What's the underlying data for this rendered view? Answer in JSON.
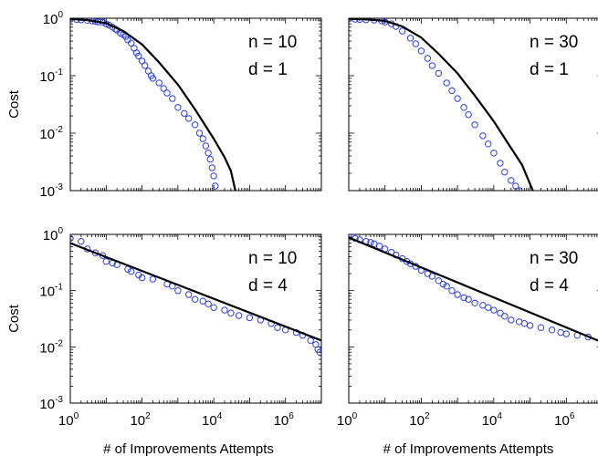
{
  "chart_data": [
    {
      "type": "scatter",
      "position": "top-left",
      "ylabel": "Cost",
      "xlabel": "",
      "x_scale": "log",
      "y_scale": "log",
      "xlim": [
        1,
        10000000.0
      ],
      "ylim": [
        0.001,
        1
      ],
      "annotation": {
        "n": "10",
        "d": "1"
      },
      "series": [
        {
          "kind": "points",
          "points": [
            [
              1,
              0.96
            ],
            [
              1.5,
              0.95
            ],
            [
              2,
              0.94
            ],
            [
              3,
              0.92
            ],
            [
              4,
              0.9
            ],
            [
              5,
              0.88
            ],
            [
              6,
              0.86
            ],
            [
              8,
              0.85
            ],
            [
              10,
              0.8
            ],
            [
              12,
              0.76
            ],
            [
              15,
              0.7
            ],
            [
              18,
              0.65
            ],
            [
              20,
              0.62
            ],
            [
              25,
              0.55
            ],
            [
              30,
              0.52
            ],
            [
              35,
              0.48
            ],
            [
              40,
              0.42
            ],
            [
              50,
              0.37
            ],
            [
              60,
              0.3
            ],
            [
              70,
              0.25
            ],
            [
              80,
              0.22
            ],
            [
              100,
              0.18
            ],
            [
              120,
              0.15
            ],
            [
              150,
              0.12
            ],
            [
              180,
              0.1
            ],
            [
              200,
              0.09
            ],
            [
              300,
              0.075
            ],
            [
              400,
              0.06
            ],
            [
              500,
              0.05
            ],
            [
              700,
              0.04
            ],
            [
              1000,
              0.028
            ],
            [
              1500,
              0.022
            ],
            [
              2000,
              0.018
            ],
            [
              3000,
              0.014
            ],
            [
              4000,
              0.01
            ],
            [
              5000,
              0.008
            ],
            [
              6000,
              0.006
            ],
            [
              7000,
              0.0045
            ],
            [
              8000,
              0.0035
            ],
            [
              9000,
              0.0025
            ],
            [
              10000,
              0.0018
            ],
            [
              11000,
              0.0012
            ]
          ]
        },
        {
          "kind": "line",
          "points": [
            [
              1,
              0.97
            ],
            [
              3,
              0.93
            ],
            [
              10,
              0.82
            ],
            [
              30,
              0.6
            ],
            [
              100,
              0.35
            ],
            [
              300,
              0.17
            ],
            [
              1000,
              0.07
            ],
            [
              3000,
              0.026
            ],
            [
              10000,
              0.008
            ],
            [
              20000,
              0.0038
            ],
            [
              30000,
              0.0022
            ],
            [
              40000,
              0.001
            ]
          ]
        }
      ]
    },
    {
      "type": "scatter",
      "position": "top-right",
      "ylabel": "",
      "xlabel": "",
      "x_scale": "log",
      "y_scale": "log",
      "xlim": [
        1,
        10000000.0
      ],
      "ylim": [
        0.001,
        1
      ],
      "annotation": {
        "n": "30",
        "d": "1"
      },
      "series": [
        {
          "kind": "points",
          "points": [
            [
              1,
              0.97
            ],
            [
              1.5,
              0.96
            ],
            [
              2,
              0.95
            ],
            [
              3,
              0.94
            ],
            [
              5,
              0.93
            ],
            [
              8,
              0.9
            ],
            [
              10,
              0.86
            ],
            [
              15,
              0.8
            ],
            [
              20,
              0.72
            ],
            [
              30,
              0.6
            ],
            [
              50,
              0.45
            ],
            [
              70,
              0.36
            ],
            [
              100,
              0.27
            ],
            [
              150,
              0.2
            ],
            [
              200,
              0.15
            ],
            [
              300,
              0.11
            ],
            [
              500,
              0.075
            ],
            [
              700,
              0.055
            ],
            [
              1000,
              0.04
            ],
            [
              1500,
              0.028
            ],
            [
              2000,
              0.021
            ],
            [
              3000,
              0.014
            ],
            [
              5000,
              0.009
            ],
            [
              7000,
              0.0065
            ],
            [
              10000,
              0.0045
            ],
            [
              15000,
              0.003
            ],
            [
              20000,
              0.0021
            ],
            [
              30000,
              0.0015
            ],
            [
              40000,
              0.0012
            ],
            [
              50000,
              0.001
            ]
          ]
        },
        {
          "kind": "line",
          "points": [
            [
              1,
              0.98
            ],
            [
              3,
              0.96
            ],
            [
              10,
              0.9
            ],
            [
              30,
              0.72
            ],
            [
              100,
              0.46
            ],
            [
              300,
              0.24
            ],
            [
              1000,
              0.11
            ],
            [
              3000,
              0.045
            ],
            [
              10000,
              0.016
            ],
            [
              30000,
              0.0055
            ],
            [
              60000,
              0.0028
            ],
            [
              100000,
              0.0013
            ],
            [
              120000,
              0.001
            ]
          ]
        }
      ]
    },
    {
      "type": "scatter",
      "position": "bottom-left",
      "ylabel": "Cost",
      "xlabel": "# of Improvements Attempts",
      "x_scale": "log",
      "y_scale": "log",
      "xlim": [
        1,
        10000000.0
      ],
      "ylim": [
        0.001,
        1
      ],
      "annotation": {
        "n": "10",
        "d": "4"
      },
      "series": [
        {
          "kind": "points",
          "points": [
            [
              1,
              0.85
            ],
            [
              2,
              0.75
            ],
            [
              3,
              0.55
            ],
            [
              5,
              0.47
            ],
            [
              8,
              0.42
            ],
            [
              10,
              0.33
            ],
            [
              15,
              0.31
            ],
            [
              20,
              0.29
            ],
            [
              40,
              0.24
            ],
            [
              50,
              0.22
            ],
            [
              80,
              0.19
            ],
            [
              100,
              0.17
            ],
            [
              200,
              0.16
            ],
            [
              500,
              0.13
            ],
            [
              700,
              0.12
            ],
            [
              1000,
              0.1
            ],
            [
              2000,
              0.085
            ],
            [
              3000,
              0.07
            ],
            [
              5000,
              0.065
            ],
            [
              7000,
              0.058
            ],
            [
              10000,
              0.05
            ],
            [
              20000,
              0.045
            ],
            [
              30000,
              0.04
            ],
            [
              50000,
              0.036
            ],
            [
              100000,
              0.033
            ],
            [
              200000,
              0.03
            ],
            [
              400000,
              0.026
            ],
            [
              600000,
              0.022
            ],
            [
              1000000,
              0.02
            ],
            [
              2000000,
              0.018
            ],
            [
              3000000,
              0.016
            ],
            [
              5000000,
              0.013
            ],
            [
              7000000,
              0.011
            ],
            [
              8000000,
              0.009
            ],
            [
              9000000,
              0.008
            ]
          ]
        },
        {
          "kind": "line",
          "points": [
            [
              1,
              0.7
            ],
            [
              10000000,
              0.013
            ]
          ]
        }
      ]
    },
    {
      "type": "scatter",
      "position": "bottom-right",
      "ylabel": "",
      "xlabel": "# of Improvements Attempts",
      "x_scale": "log",
      "y_scale": "log",
      "xlim": [
        1,
        10000000.0
      ],
      "ylim": [
        0.001,
        1
      ],
      "annotation": {
        "n": "30",
        "d": "4"
      },
      "series": [
        {
          "kind": "points",
          "points": [
            [
              1,
              0.9
            ],
            [
              1.5,
              0.85
            ],
            [
              2,
              0.8
            ],
            [
              3,
              0.75
            ],
            [
              4,
              0.72
            ],
            [
              5,
              0.68
            ],
            [
              7,
              0.62
            ],
            [
              10,
              0.55
            ],
            [
              15,
              0.48
            ],
            [
              20,
              0.43
            ],
            [
              30,
              0.37
            ],
            [
              40,
              0.33
            ],
            [
              50,
              0.3
            ],
            [
              70,
              0.27
            ],
            [
              100,
              0.23
            ],
            [
              150,
              0.2
            ],
            [
              200,
              0.18
            ],
            [
              300,
              0.15
            ],
            [
              400,
              0.13
            ],
            [
              500,
              0.12
            ],
            [
              700,
              0.1
            ],
            [
              1000,
              0.085
            ],
            [
              1500,
              0.075
            ],
            [
              2000,
              0.07
            ],
            [
              3000,
              0.06
            ],
            [
              5000,
              0.055
            ],
            [
              7000,
              0.05
            ],
            [
              10000,
              0.045
            ],
            [
              15000,
              0.04
            ],
            [
              20000,
              0.035
            ],
            [
              30000,
              0.03
            ],
            [
              50000,
              0.028
            ],
            [
              70000,
              0.026
            ],
            [
              100000,
              0.024
            ],
            [
              200000,
              0.022
            ],
            [
              400000,
              0.02
            ],
            [
              700000,
              0.018
            ],
            [
              1000000,
              0.017
            ],
            [
              2000000,
              0.016
            ],
            [
              4000000,
              0.015
            ]
          ]
        },
        {
          "kind": "line",
          "points": [
            [
              1,
              0.88
            ],
            [
              10000000,
              0.012
            ]
          ]
        }
      ]
    }
  ],
  "tick_labels": {
    "x": [
      {
        "base": "10",
        "exp": "0",
        "value": 1
      },
      {
        "base": "10",
        "exp": "2",
        "value": 100
      },
      {
        "base": "10",
        "exp": "4",
        "value": 10000
      },
      {
        "base": "10",
        "exp": "6",
        "value": 1000000
      }
    ],
    "y": [
      {
        "base": "10",
        "exp": "0",
        "value": 1
      },
      {
        "base": "10",
        "exp": "-1",
        "value": 0.1
      },
      {
        "base": "10",
        "exp": "-2",
        "value": 0.01
      },
      {
        "base": "10",
        "exp": "-3",
        "value": 0.001
      }
    ]
  },
  "annotation_labels": {
    "n": "n",
    "d": "d",
    "eq": "="
  },
  "colors": {
    "points": "#2a3fe0",
    "line": "#000000",
    "axes": "#000000"
  }
}
